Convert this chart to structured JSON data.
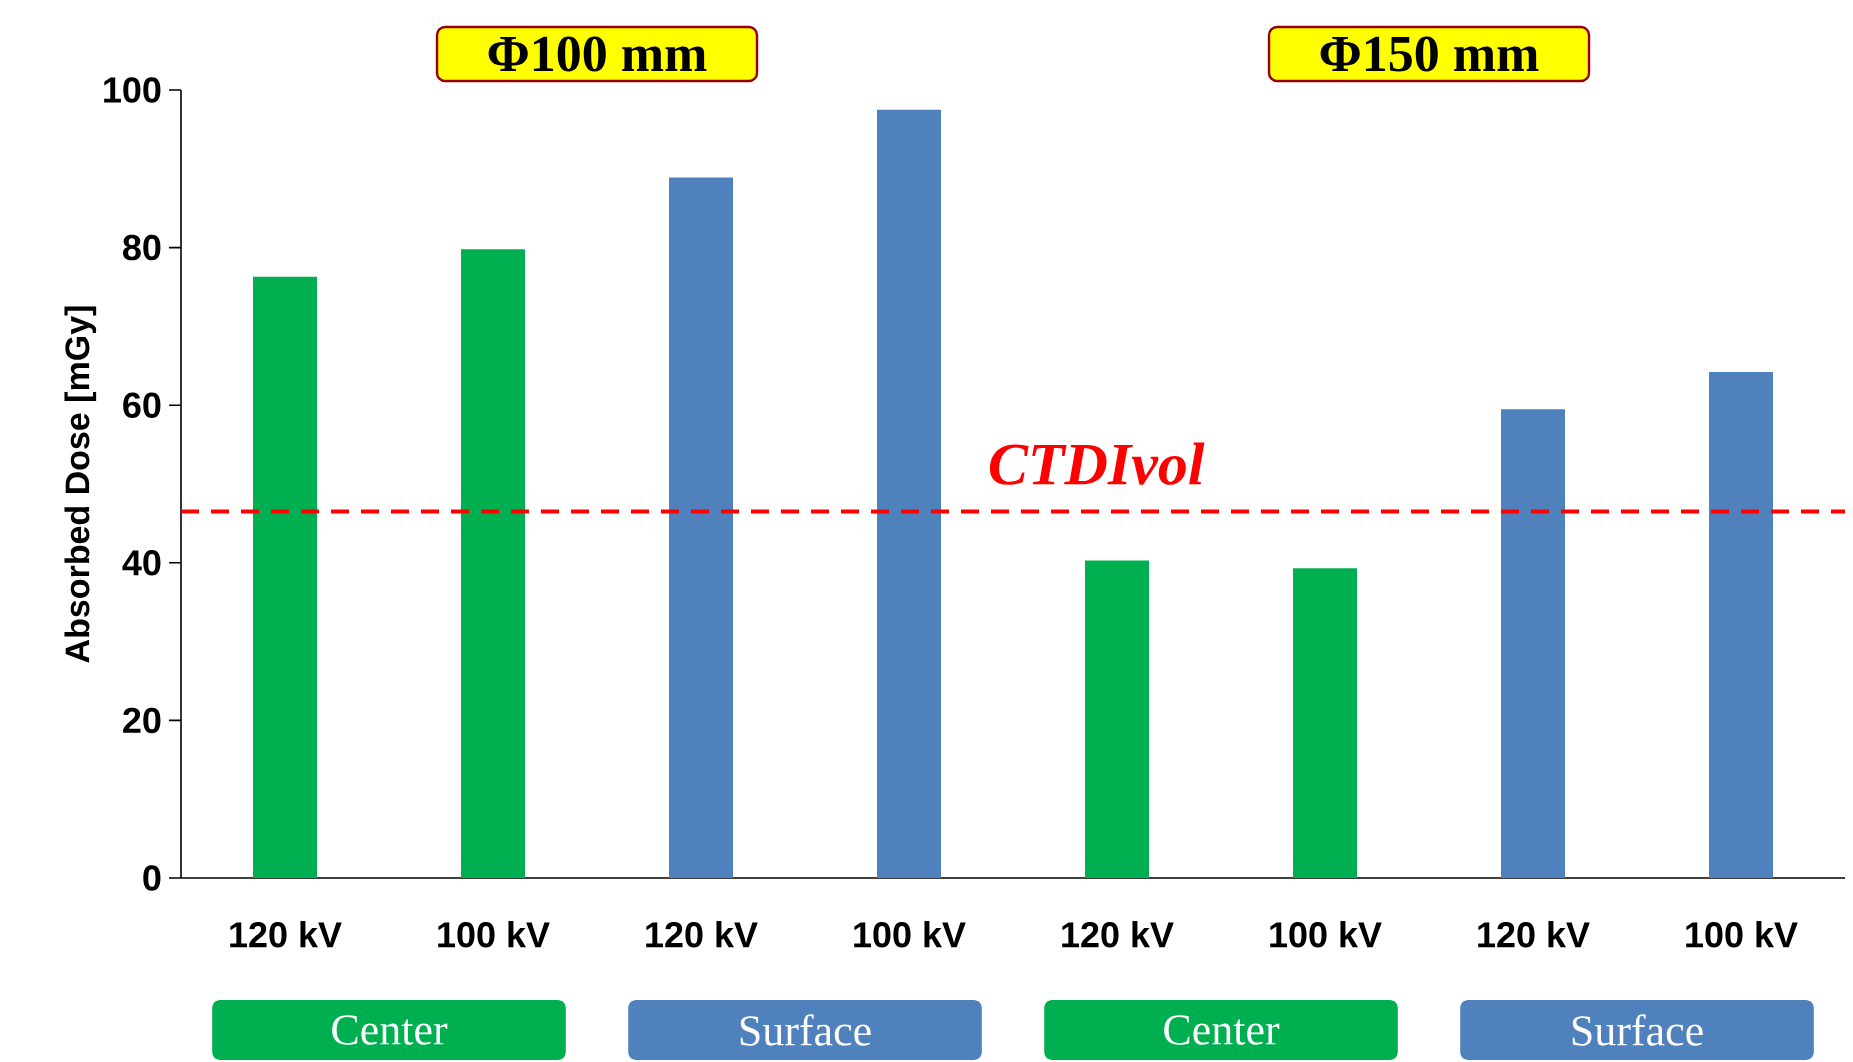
{
  "chart_data": {
    "type": "bar",
    "ylabel": "Absorbed Dose [mGy]",
    "categories": [
      "120 kV",
      "100 kV",
      "120 kV",
      "100 kV",
      "120 kV",
      "100 kV",
      "120 kV",
      "100 kV"
    ],
    "values": [
      76.3,
      79.8,
      88.9,
      97.5,
      40.3,
      39.3,
      59.5,
      64.2
    ],
    "colors": [
      "#00b050",
      "#00b050",
      "#4f81bd",
      "#4f81bd",
      "#00b050",
      "#00b050",
      "#4f81bd",
      "#4f81bd"
    ],
    "ylim": [
      0,
      100
    ],
    "yticks": [
      0,
      20,
      40,
      60,
      80,
      100
    ],
    "grid": false,
    "ref_lines": [
      {
        "axis": "y",
        "value": 46.5,
        "label": "CTDIvol",
        "color": "#ff0000",
        "line_style": "dashed"
      }
    ],
    "annotations": [
      "Φ100 mm",
      "Φ150 mm",
      "Center",
      "Surface",
      "Center",
      "Surface"
    ]
  }
}
